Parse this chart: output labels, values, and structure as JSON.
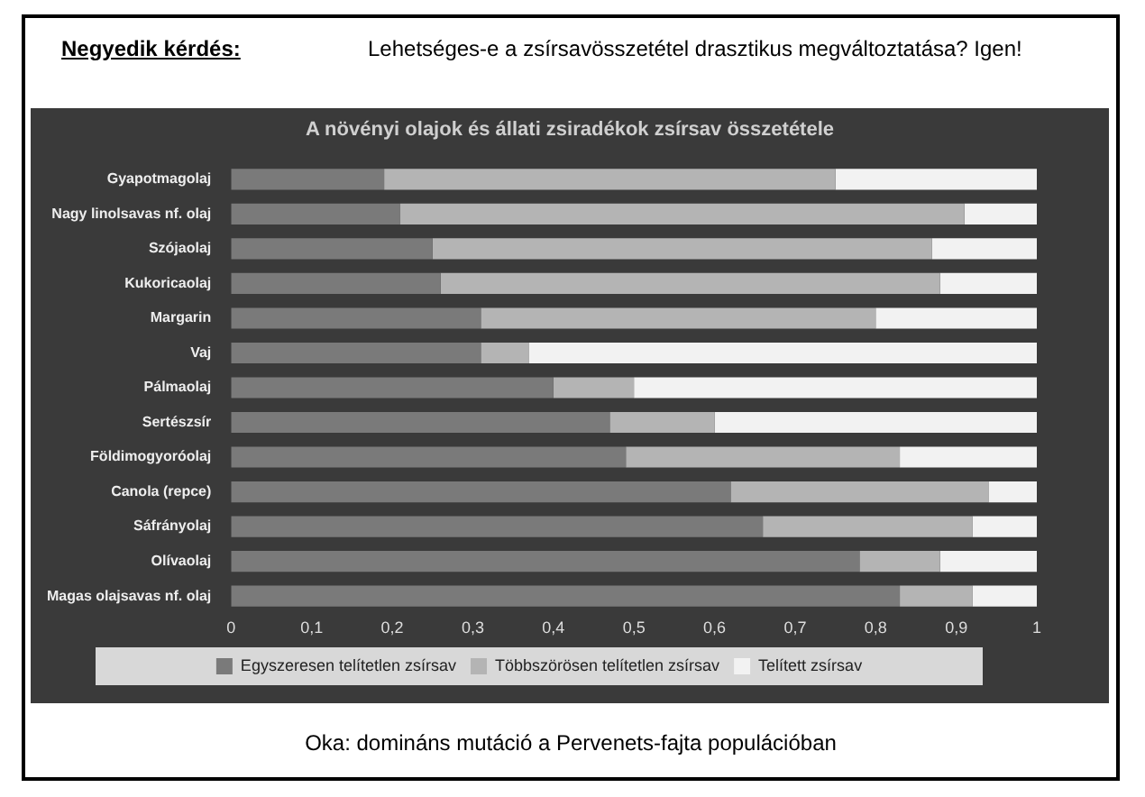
{
  "chart_data": {
    "type": "bar",
    "orientation": "horizontal",
    "stacked": true,
    "title": "A növényi olajok és állati zsiradékok zsírsav összetétele",
    "annotations": [
      "Negyedik kérdés:",
      "Lehetséges-e a zsírsavösszetétel drasztikus megváltoztatása? Igen!",
      "Oka: domináns mutáció a Pervenets-fajta populációban"
    ],
    "categories": [
      "Gyapotmagolaj",
      "Nagy linolsavas nf. olaj",
      "Szójaolaj",
      "Kukoricaolaj",
      "Margarin",
      "Vaj",
      "Pálmaolaj",
      "Sertészsír",
      "Földimogyoróolaj",
      "Canola (repce)",
      "Sáfrányolaj",
      "Olívaolaj",
      "Magas olajsavas nf. olaj"
    ],
    "series": [
      {
        "name": "Egyszeresen telítetlen zsírsav",
        "color": "#7a7a7a",
        "values": [
          0.19,
          0.21,
          0.25,
          0.26,
          0.31,
          0.31,
          0.4,
          0.47,
          0.49,
          0.62,
          0.66,
          0.78,
          0.83
        ]
      },
      {
        "name": "Többszörösen telítetlen zsírsav",
        "color": "#b4b4b4",
        "values": [
          0.56,
          0.7,
          0.62,
          0.62,
          0.49,
          0.06,
          0.1,
          0.13,
          0.34,
          0.32,
          0.26,
          0.1,
          0.09
        ]
      },
      {
        "name": "Telített zsírsav",
        "color": "#f2f2f2",
        "values": [
          0.25,
          0.09,
          0.13,
          0.12,
          0.2,
          0.63,
          0.5,
          0.4,
          0.17,
          0.06,
          0.08,
          0.12,
          0.08
        ]
      }
    ],
    "xlim": [
      0,
      1
    ],
    "xticks": [
      0,
      {
        "value": 0.1,
        "label": "0,1"
      },
      {
        "value": 0.2,
        "label": "0,2"
      },
      {
        "value": 0.3,
        "label": "0,3"
      },
      {
        "value": 0.4,
        "label": "0,4"
      },
      {
        "value": 0.5,
        "label": "0,5"
      },
      {
        "value": 0.6,
        "label": "0,6"
      },
      {
        "value": 0.7,
        "label": "0,7"
      },
      {
        "value": 0.8,
        "label": "0,8"
      },
      {
        "value": 0.9,
        "label": "0,9"
      },
      1
    ],
    "grid": false,
    "legend": "bottom"
  }
}
